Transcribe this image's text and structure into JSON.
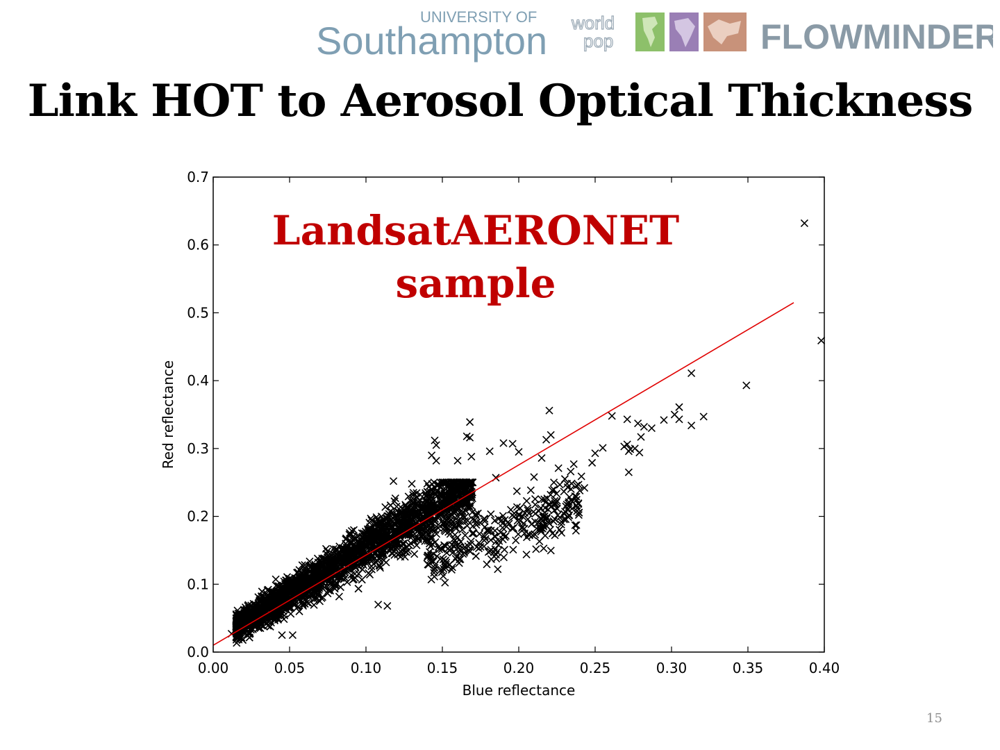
{
  "header": {
    "logo_university_small": "UNIVERSITY OF",
    "logo_university_name": "Southampton",
    "logo_worldpop_1": "world",
    "logo_worldpop_2": "pop",
    "logo_flowminder": "FLOWMINDER.ORG",
    "logo_colors": {
      "americas": "#8dc06a",
      "africa": "#9a7fb5",
      "asia": "#c8927a"
    }
  },
  "slide": {
    "title": "Link HOT to Aerosol Optical Thickness",
    "page_number": "15"
  },
  "chart_data": {
    "type": "scatter",
    "title": "",
    "xlabel": "Blue reflectance",
    "ylabel": "Red reflectance",
    "xlim": [
      0.0,
      0.4
    ],
    "ylim": [
      0.0,
      0.7
    ],
    "xticks": [
      "0.00",
      "0.05",
      "0.10",
      "0.15",
      "0.20",
      "0.25",
      "0.30",
      "0.35",
      "0.40"
    ],
    "yticks": [
      "0.0",
      "0.1",
      "0.2",
      "0.3",
      "0.4",
      "0.5",
      "0.6",
      "0.7"
    ],
    "grid": false,
    "marker": "x",
    "marker_color": "#000000",
    "annotation": [
      "LandsatAERONET",
      "sample"
    ],
    "annotation_color": "#c00000",
    "fit_line": {
      "x": [
        0.0,
        0.38
      ],
      "y": [
        0.01,
        0.515
      ],
      "color": "#e00000"
    },
    "series": [
      {
        "points": [
          [
            0.387,
            0.632
          ],
          [
            0.398,
            0.459
          ],
          [
            0.349,
            0.393
          ],
          [
            0.313,
            0.411
          ],
          [
            0.321,
            0.347
          ],
          [
            0.313,
            0.334
          ],
          [
            0.305,
            0.361
          ],
          [
            0.305,
            0.343
          ],
          [
            0.302,
            0.35
          ],
          [
            0.295,
            0.342
          ],
          [
            0.287,
            0.33
          ],
          [
            0.282,
            0.332
          ],
          [
            0.278,
            0.337
          ],
          [
            0.28,
            0.317
          ],
          [
            0.276,
            0.3
          ],
          [
            0.273,
            0.299
          ],
          [
            0.272,
            0.296
          ],
          [
            0.271,
            0.306
          ],
          [
            0.269,
            0.303
          ],
          [
            0.272,
            0.265
          ],
          [
            0.279,
            0.294
          ],
          [
            0.271,
            0.343
          ],
          [
            0.261,
            0.348
          ],
          [
            0.255,
            0.301
          ],
          [
            0.25,
            0.293
          ],
          [
            0.248,
            0.279
          ],
          [
            0.241,
            0.259
          ],
          [
            0.243,
            0.242
          ],
          [
            0.236,
            0.277
          ],
          [
            0.234,
            0.266
          ],
          [
            0.232,
            0.243
          ],
          [
            0.226,
            0.271
          ],
          [
            0.223,
            0.25
          ],
          [
            0.22,
            0.356
          ],
          [
            0.221,
            0.32
          ],
          [
            0.218,
            0.313
          ],
          [
            0.215,
            0.286
          ],
          [
            0.21,
            0.258
          ],
          [
            0.207,
            0.172
          ],
          [
            0.2,
            0.295
          ],
          [
            0.196,
            0.307
          ],
          [
            0.19,
            0.308
          ],
          [
            0.185,
            0.257
          ],
          [
            0.181,
            0.296
          ],
          [
            0.168,
            0.339
          ],
          [
            0.168,
            0.316
          ],
          [
            0.166,
            0.318
          ],
          [
            0.169,
            0.288
          ],
          [
            0.16,
            0.282
          ],
          [
            0.145,
            0.312
          ],
          [
            0.146,
            0.305
          ],
          [
            0.143,
            0.29
          ],
          [
            0.146,
            0.282
          ],
          [
            0.182,
            0.137
          ],
          [
            0.152,
            0.135
          ],
          [
            0.13,
            0.248
          ],
          [
            0.118,
            0.252
          ],
          [
            0.108,
            0.07
          ],
          [
            0.114,
            0.068
          ],
          [
            0.052,
            0.025
          ],
          [
            0.045,
            0.025
          ],
          [
            0.012,
            0.027
          ],
          [
            0.019,
            0.031
          ],
          [
            0.175,
            0.155
          ],
          [
            0.192,
            0.185
          ]
        ]
      }
    ]
  }
}
